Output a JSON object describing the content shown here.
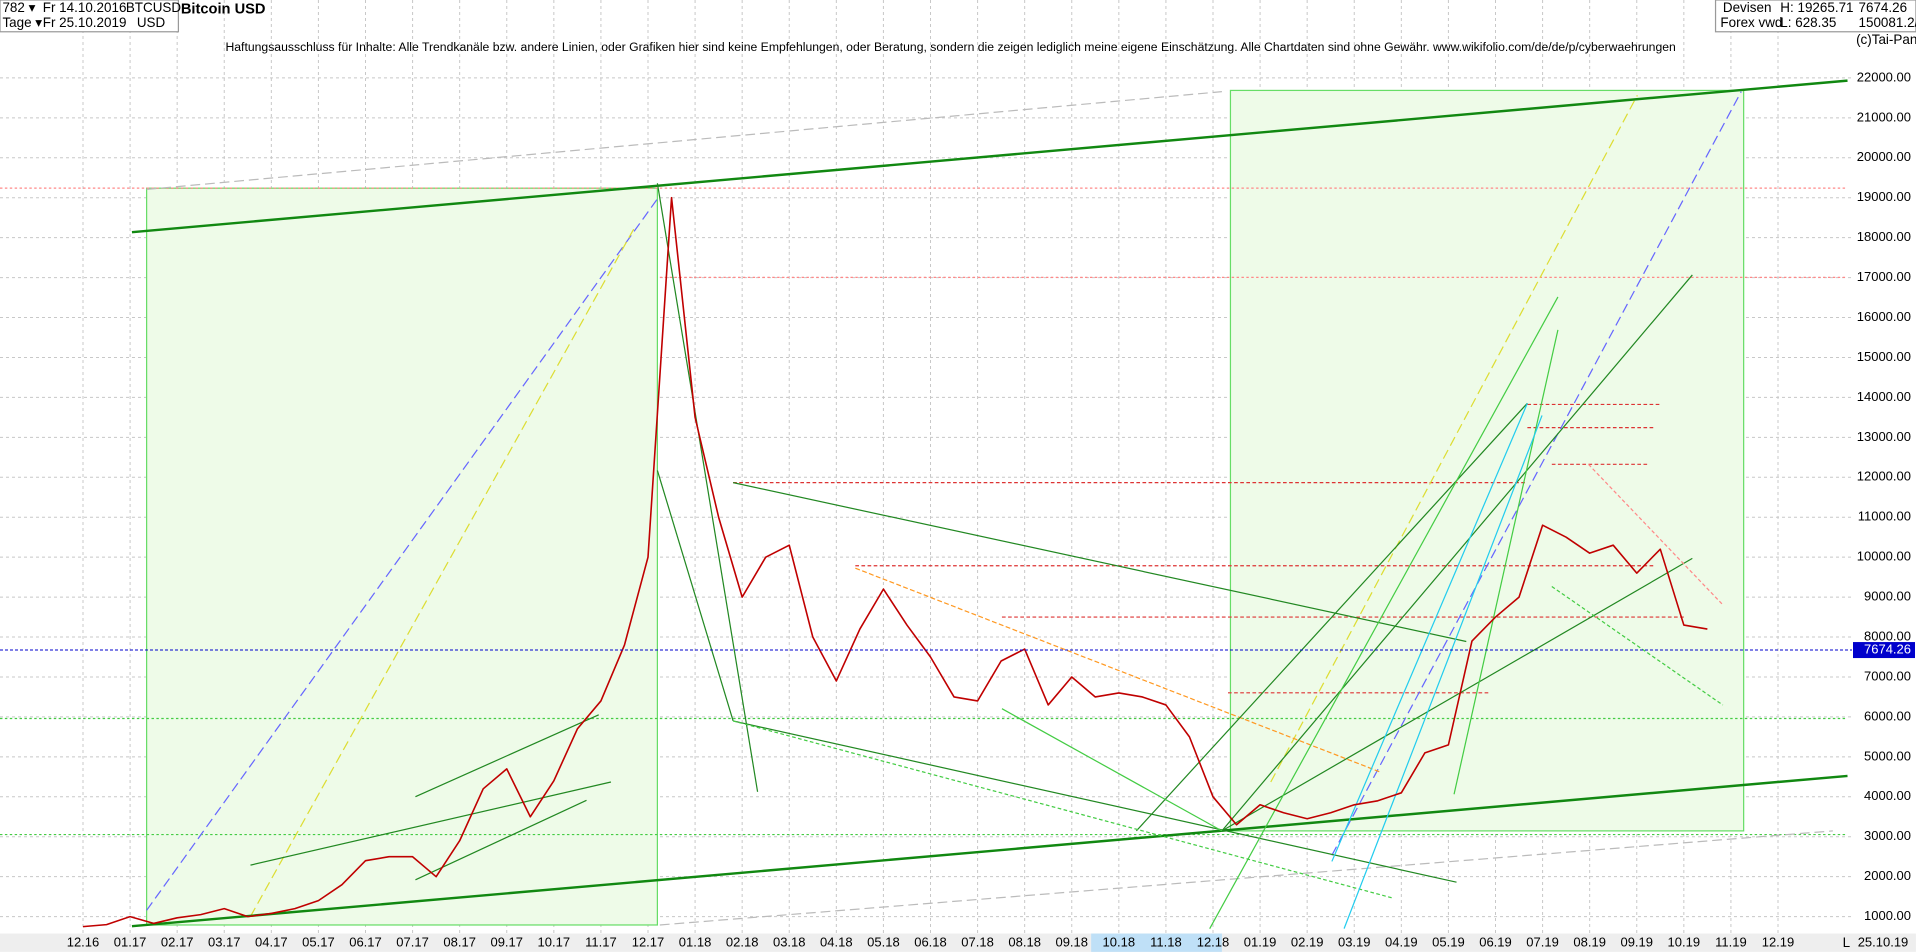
{
  "header": {
    "count": "782 ▾",
    "start": "Fr 14.10.2016",
    "symbol": "BTCUSD",
    "name": "Bitcoin USD",
    "period": "Tage ▾",
    "end": "Fr 25.10.2019",
    "currency": "USD",
    "market": "Devisen",
    "source": "Forex vwd",
    "high": "H: 19265.71",
    "low": "L: 628.35",
    "volume": "150081.2/",
    "copyright": "(c)Tai-Pan",
    "scale_mode": "L",
    "disclaimer": "Haftungsausschluss für Inhalte: Alle Trendkanäle bzw. andere Linien, oder Grafiken hier sind keine Empfehlungen, oder Beratung, sondern die zeigen lediglich meine eigene Einschätzung. Alle Chartdaten sind ohne Gewähr.  www.wikifolio.com/de/de/p/cyberwaehrungen"
  },
  "chart_data": {
    "type": "line",
    "title": "Bitcoin USD",
    "categories": [
      "12.16",
      null,
      "01.17",
      null,
      "02.17",
      null,
      "03.17",
      null,
      "04.17",
      null,
      "05.17",
      null,
      "06.17",
      null,
      "07.17",
      null,
      "08.17",
      null,
      "09.17",
      null,
      "10.17",
      null,
      "11.17",
      null,
      "12.17",
      null,
      "01.18",
      null,
      "02.18",
      null,
      "03.18",
      null,
      "04.18",
      null,
      "05.18",
      null,
      "06.18",
      null,
      "07.18",
      null,
      "08.18",
      null,
      "09.18",
      null,
      "10.18",
      null,
      "11.18",
      null,
      "12.18",
      null,
      "01.19",
      null,
      "02.19",
      null,
      "03.19",
      null,
      "04.19",
      null,
      "05.19",
      null,
      "06.19",
      null,
      "07.19",
      null,
      "08.19",
      null,
      "09.19",
      null,
      "10.19",
      null,
      "11.19",
      null,
      "12.19"
    ],
    "series": [
      {
        "name": "BTCUSD",
        "color": "#c00000",
        "values": [
          750,
          800,
          1000,
          830,
          970,
          1050,
          1200,
          1000,
          1080,
          1200,
          1400,
          1800,
          2400,
          2500,
          2500,
          2000,
          2900,
          4200,
          4700,
          3500,
          4400,
          5700,
          6400,
          7800,
          10000,
          19000,
          13500,
          11000,
          9000,
          10000,
          10300,
          8000,
          6900,
          8200,
          9200,
          8300,
          7500,
          6500,
          6400,
          7400,
          7700,
          6300,
          7000,
          6500,
          6600,
          6500,
          6300,
          5500,
          4000,
          3300,
          3800,
          3600,
          3450,
          3600,
          3800,
          3900,
          4100,
          5100,
          5300,
          7900,
          8500,
          9000,
          10800,
          10500,
          10100,
          10300,
          9600,
          10200,
          8300,
          8200,
          null,
          null,
          null
        ]
      }
    ],
    "last_value": 7674.26,
    "last_color": "#0000cc",
    "end_date": "25.10.19",
    "ylim": [
      590,
      23950
    ],
    "yticks": [
      {
        "value": 1000,
        "label": "1000.00"
      },
      {
        "value": 2000,
        "label": "2000.00"
      },
      {
        "value": 3000,
        "label": "3000.00"
      },
      {
        "value": 4000,
        "label": "4000.00"
      },
      {
        "value": 5000,
        "label": "5000.00"
      },
      {
        "value": 6000,
        "label": "6000.00"
      },
      {
        "value": 7000,
        "label": "7000.00"
      },
      {
        "value": 8000,
        "label": "8000.00"
      },
      {
        "value": 9000,
        "label": "9000.00"
      },
      {
        "value": 10000,
        "label": "10000.00"
      },
      {
        "value": 11000,
        "label": "11000.00"
      },
      {
        "value": 12000,
        "label": "12000.00"
      },
      {
        "value": 13000,
        "label": "13000.00"
      },
      {
        "value": 14000,
        "label": "14000.00"
      },
      {
        "value": 15000,
        "label": "15000.00"
      },
      {
        "value": 16000,
        "label": "16000.00"
      },
      {
        "value": 17000,
        "label": "17000.00"
      },
      {
        "value": 18000,
        "label": "18000.00"
      },
      {
        "value": 19000,
        "label": "19000.00"
      },
      {
        "value": 20000,
        "label": "20000.00"
      },
      {
        "value": 21000,
        "label": "21000.00"
      },
      {
        "value": 22000,
        "label": "22000.00"
      }
    ],
    "grid": true
  }
}
